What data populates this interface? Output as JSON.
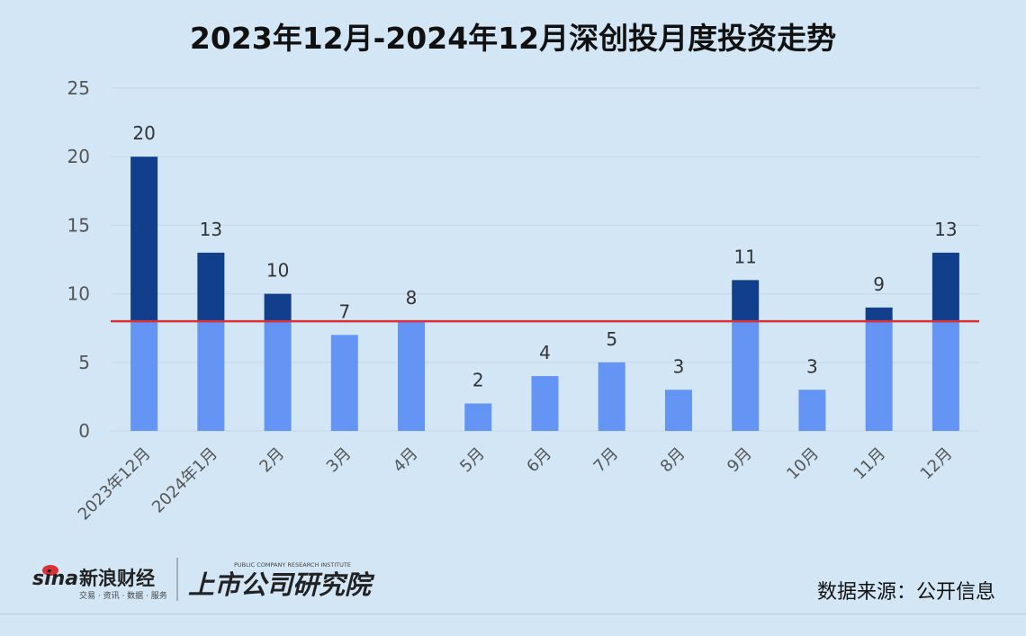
{
  "chart_data": {
    "type": "bar",
    "title": "2023年12月-2024年12月深创投月度投资走势",
    "categories": [
      "2023年12月",
      "2024年1月",
      "2月",
      "3月",
      "4月",
      "5月",
      "6月",
      "7月",
      "8月",
      "9月",
      "10月",
      "11月",
      "12月"
    ],
    "values": [
      20,
      13,
      10,
      7,
      8,
      2,
      4,
      5,
      3,
      11,
      3,
      9,
      13
    ],
    "reference_line": 8,
    "ylim": [
      0,
      25
    ],
    "yticks": [
      0,
      5,
      10,
      15,
      20,
      25
    ],
    "xlabel": "",
    "ylabel": "",
    "grid": true,
    "legend": "none",
    "colors": {
      "base": "#6495f5",
      "above": "#123f8c",
      "line": "#d9303a",
      "grid": "#c5d7e6"
    }
  },
  "footer": {
    "brand_sina": "新浪财经",
    "brand_sina_sub": "交易 · 资讯 · 数据 · 服务",
    "brand_institute": "上市公司研究院",
    "brand_institute_en": "PUBLIC COMPANY RESEARCH INSTITUTE",
    "source_note": "数据来源：公开信息"
  }
}
